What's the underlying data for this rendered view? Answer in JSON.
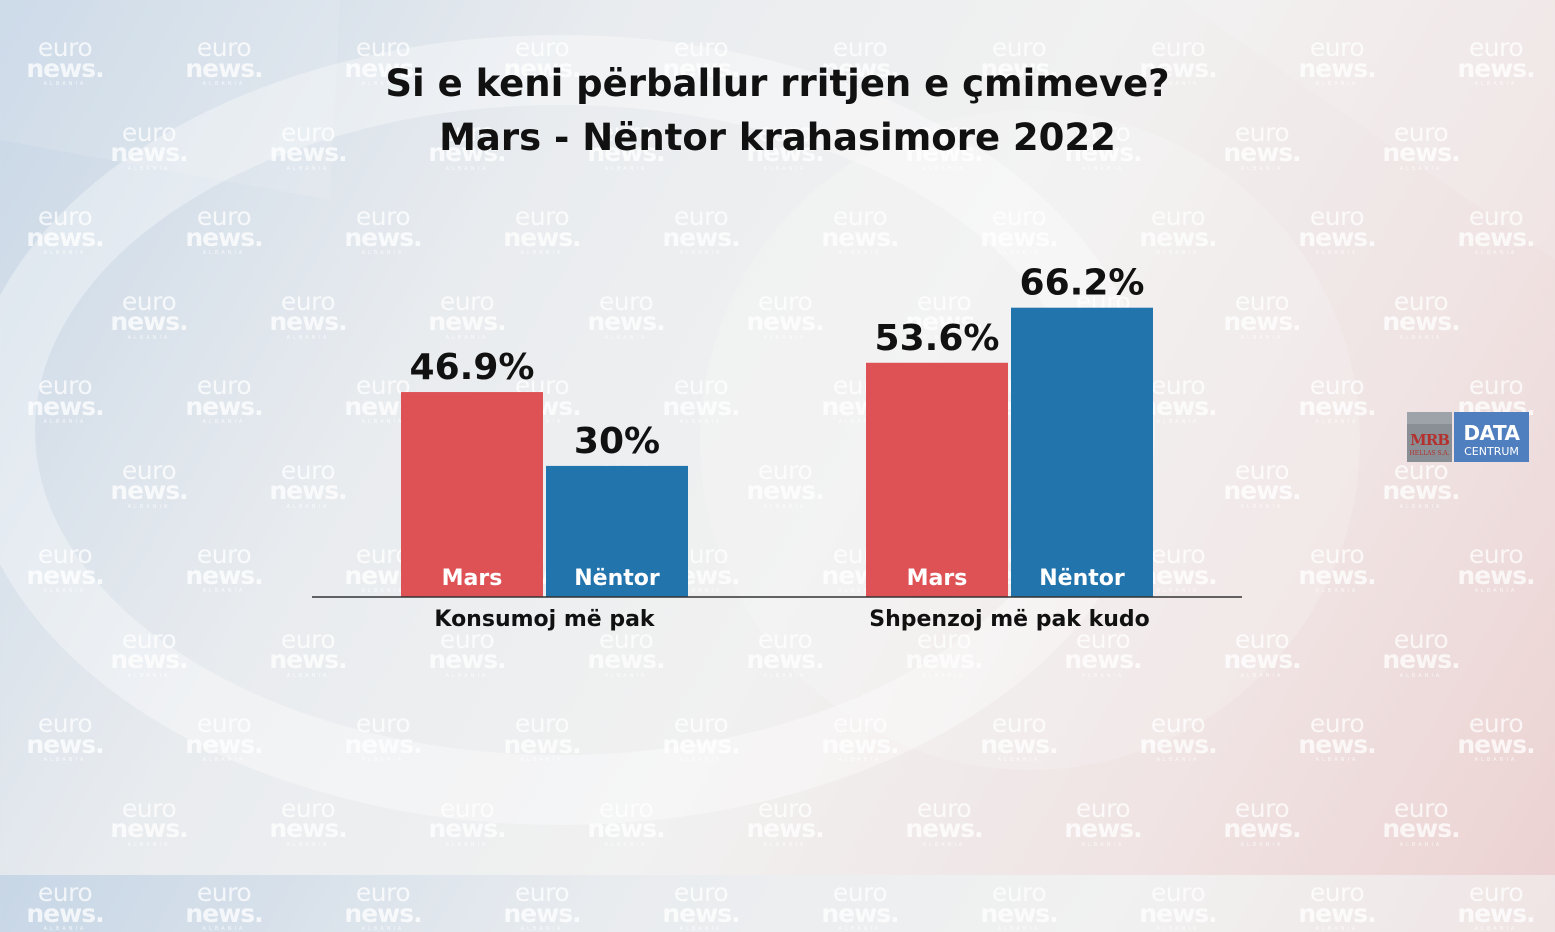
{
  "watermark": {
    "line1": "euro",
    "line2": "news.",
    "line3": "ALBANIA"
  },
  "logo": {
    "mrb": "MRB",
    "mrb_sub": "HELLAS S.A.",
    "data": "DATA",
    "data_sub": "CENTRUM"
  },
  "colors": {
    "mars": "#de5256",
    "nentor": "#2274ad",
    "axis": "#333333"
  },
  "chart_data": {
    "type": "bar",
    "title": "Si e keni përballur rritjen e çmimeve?",
    "subtitle": "Mars - Nëntor krahasimore 2022",
    "categories": [
      "Konsumoj më pak",
      "Shpenzoj më pak kudo"
    ],
    "series": [
      {
        "name": "Mars",
        "values": [
          46.9,
          53.6
        ],
        "labels": [
          "46.9%",
          "53.6%"
        ]
      },
      {
        "name": "Nëntor",
        "values": [
          30,
          66.2
        ],
        "labels": [
          "30%",
          "66.2%"
        ]
      }
    ],
    "ylim": [
      0,
      100
    ],
    "grid": false,
    "legend": "none"
  }
}
